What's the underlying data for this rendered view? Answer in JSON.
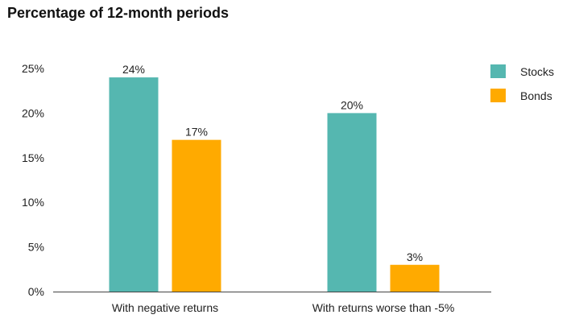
{
  "chart_data": {
    "type": "bar",
    "title": "Percentage of 12-month periods",
    "categories": [
      "With negative returns",
      "With returns worse than -5%"
    ],
    "series": [
      {
        "name": "Stocks",
        "values": [
          24,
          20
        ],
        "labels": [
          "24%",
          "20%"
        ],
        "color": "#55b7b0"
      },
      {
        "name": "Bonds",
        "values": [
          17,
          3
        ],
        "labels": [
          "17%",
          "3%"
        ],
        "color": "#ffaa00"
      }
    ],
    "ylim": [
      0,
      25
    ],
    "y_ticks": [
      0,
      5,
      10,
      15,
      20,
      25
    ],
    "y_tick_labels": [
      "0%",
      "5%",
      "10%",
      "15%",
      "20%",
      "25%"
    ],
    "grid": false,
    "legend": "top-right"
  }
}
